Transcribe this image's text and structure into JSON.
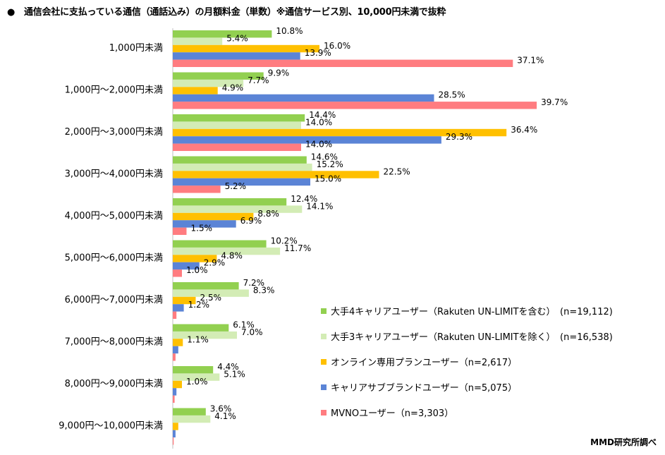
{
  "title": "●　通信会社に支払っている通信（通話込み）の月額料金（単数）※通信サービス別、10,000円未満で抜粋",
  "credit": "MMD研究所調べ",
  "chart_data": {
    "type": "bar",
    "orientation": "horizontal",
    "categories": [
      "1,000円未満",
      "1,000円～2,000円未満",
      "2,000円～3,000円未満",
      "3,000円～4,000円未満",
      "4,000円～5,000円未満",
      "5,000円～6,000円未満",
      "6,000円～7,000円未満",
      "7,000円～8,000円未満",
      "8,000円～9,000円未満",
      "9,000円～10,000円未満"
    ],
    "series": [
      {
        "name": "大手4キャリアユーザー（Rakuten UN-LIMITを含む）　(n=19,112)",
        "color": "#92d050",
        "values": [
          10.8,
          9.9,
          14.4,
          14.6,
          12.4,
          10.2,
          7.2,
          6.1,
          4.4,
          3.6
        ],
        "labels": [
          "10.8%",
          "9.9%",
          "14.4%",
          "14.6%",
          "12.4%",
          "10.2%",
          "7.2%",
          "6.1%",
          "4.4%",
          "3.6%"
        ]
      },
      {
        "name": "大手3キャリアユーザー（Rakuten UN-LIMITを除く）　(n=16,538)",
        "color": "#d3ecb5",
        "values": [
          5.4,
          7.7,
          14.0,
          15.2,
          14.1,
          11.7,
          8.3,
          7.0,
          5.1,
          4.1
        ],
        "labels": [
          "5.4%",
          "7.7%",
          "14.0%",
          "15.2%",
          "14.1%",
          "11.7%",
          "8.3%",
          "7.0%",
          "5.1%",
          "4.1%"
        ]
      },
      {
        "name": "オンライン専用プランユーザー（n=2,617）",
        "color": "#ffc000",
        "values": [
          16.0,
          4.9,
          36.4,
          22.5,
          8.8,
          4.8,
          2.5,
          1.1,
          1.0,
          0.6
        ],
        "labels": [
          "16.0%",
          "4.9%",
          "36.4%",
          "22.5%",
          "8.8%",
          "4.8%",
          "2.5%",
          "1.1%",
          "1.0%",
          ""
        ]
      },
      {
        "name": "キャリアサブブランドユーザー（n=5,075）",
        "color": "#5b84d6",
        "values": [
          13.9,
          28.5,
          29.3,
          15.0,
          6.9,
          2.9,
          1.2,
          0.6,
          0.4,
          0.3
        ],
        "labels": [
          "13.9%",
          "28.5%",
          "29.3%",
          "15.0%",
          "6.9%",
          "2.9%",
          "1.2%",
          "",
          "",
          ""
        ]
      },
      {
        "name": "MVNOユーザー（n=3,303）",
        "color": "#ff7c80",
        "values": [
          37.1,
          39.7,
          14.0,
          5.2,
          1.5,
          1.0,
          0.4,
          0.3,
          0.2,
          0.1
        ],
        "labels": [
          "37.1%",
          "39.7%",
          "14.0%",
          "5.2%",
          "1.5%",
          "1.0%",
          "",
          "",
          "",
          ""
        ]
      }
    ],
    "xlim": [
      0,
      40
    ],
    "grid": false,
    "legend_position": "bottom-right"
  }
}
